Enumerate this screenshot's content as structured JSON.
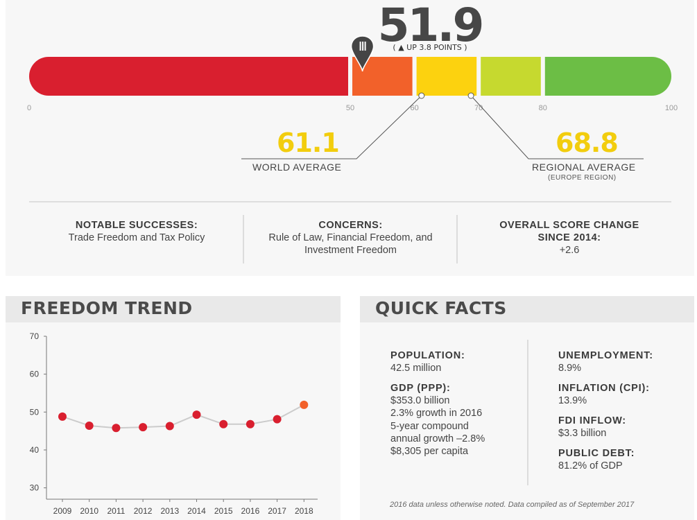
{
  "score": {
    "value": "51.9",
    "change_label": "( ▲ UP 3.8 POINTS )"
  },
  "score_bar": {
    "scale_min": 0,
    "scale_max": 100,
    "ticks": [
      "0",
      "50",
      "60",
      "70",
      "80",
      "100"
    ],
    "tick_values": [
      0,
      50,
      60,
      70,
      80,
      100
    ],
    "segments": [
      {
        "from": 0,
        "to": 50,
        "color": "#d91f2f"
      },
      {
        "from": 50,
        "to": 60,
        "color": "#f2612a"
      },
      {
        "from": 60,
        "to": 70,
        "color": "#fcd20f"
      },
      {
        "from": 70,
        "to": 80,
        "color": "#c6d92f"
      },
      {
        "from": 80,
        "to": 100,
        "color": "#6cbe45"
      }
    ],
    "marker_value": 51.9,
    "marker_icon": "map-pin-icon"
  },
  "world_average": {
    "value": "61.1",
    "score": 61.1,
    "label": "WORLD AVERAGE"
  },
  "regional_average": {
    "value": "68.8",
    "score": 68.8,
    "label": "REGIONAL AVERAGE",
    "sublabel": "(EUROPE REGION)"
  },
  "summary": {
    "successes": {
      "heading": "NOTABLE SUCCESSES:",
      "text": "Trade Freedom and Tax Policy"
    },
    "concerns": {
      "heading": "CONCERNS:",
      "line1": "Rule of Law, Financial Freedom, and",
      "line2": "Investment Freedom"
    },
    "overall": {
      "heading_line1": "OVERALL SCORE CHANGE",
      "heading_line2": "SINCE 2014:",
      "value": "+2.6"
    }
  },
  "trend": {
    "title": "FREEDOM TREND"
  },
  "chart_data": {
    "type": "line",
    "title": "FREEDOM TREND",
    "xlabel": "",
    "ylabel": "",
    "x": [
      "2009",
      "2010",
      "2011",
      "2012",
      "2013",
      "2014",
      "2015",
      "2016",
      "2017",
      "2018"
    ],
    "values": [
      48.8,
      46.4,
      45.8,
      46.0,
      46.3,
      49.3,
      46.8,
      46.8,
      48.1,
      51.9
    ],
    "ylim": [
      27,
      70
    ],
    "yticks": [
      30,
      40,
      50,
      60,
      70
    ],
    "grid": false,
    "point_color": "#d91f2f",
    "last_point_color": "#f2612a",
    "line_color": "#cccccc"
  },
  "facts": {
    "title": "QUICK FACTS",
    "population": {
      "heading": "POPULATION:",
      "value": "42.5 million"
    },
    "gdp": {
      "heading": "GDP (PPP):",
      "lines": [
        "$353.0 billion",
        "2.3% growth in 2016",
        "5-year compound",
        "annual growth –2.8%",
        "$8,305 per capita"
      ]
    },
    "unemployment": {
      "heading": "UNEMPLOYMENT:",
      "value": "8.9%"
    },
    "inflation": {
      "heading": "INFLATION (CPI):",
      "value": "13.9%"
    },
    "fdi": {
      "heading": "FDI INFLOW:",
      "value": "$3.3 billion"
    },
    "debt": {
      "heading": "PUBLIC DEBT:",
      "value": "81.2% of GDP"
    },
    "note": "2016 data unless otherwise noted. Data compiled as of September 2017"
  }
}
